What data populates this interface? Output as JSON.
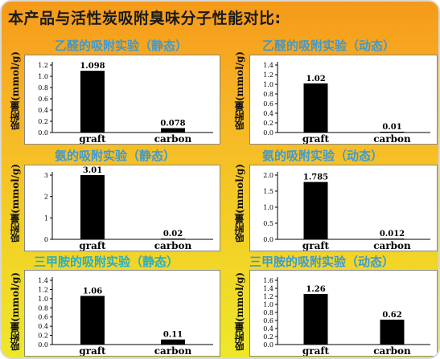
{
  "title": "本产品与活性炭吸附臭味分子性能对比:",
  "colors": {
    "bar": "#000000",
    "title_blue": "#3c9ad4",
    "title_teal": "#27aec8"
  },
  "chart_data": [
    {
      "type": "bar",
      "title": "乙醛的吸附实验（静态）",
      "ylabel": "吸附量(mmol/g)",
      "categories": [
        "graft",
        "carbon"
      ],
      "values": [
        1.098,
        0.078
      ],
      "value_labels": [
        "1.098",
        "0.078"
      ],
      "ylim": [
        0,
        1.2
      ],
      "ticks": [
        "0.0",
        "0.2",
        "0.4",
        "0.6",
        "0.8",
        "1.0",
        "1.2"
      ],
      "grid": false
    },
    {
      "type": "bar",
      "title": "乙醛的吸附实验（动态）",
      "ylabel": "吸附量(mmol/g)",
      "categories": [
        "graft",
        "carbon"
      ],
      "values": [
        1.02,
        0.01
      ],
      "value_labels": [
        "1.02",
        "0.01"
      ],
      "ylim": [
        0,
        1.4
      ],
      "ticks": [
        "0.0",
        "0.2",
        "0.4",
        "0.6",
        "0.8",
        "1.0",
        "1.2",
        "1.4"
      ],
      "grid": false
    },
    {
      "type": "bar",
      "title": "氨的吸附实验（静态）",
      "ylabel": "吸附量(mmol/g)",
      "categories": [
        "graft",
        "carbon"
      ],
      "values": [
        3.01,
        0.02
      ],
      "value_labels": [
        "3.01",
        "0.02"
      ],
      "ylim": [
        0,
        3
      ],
      "ticks": [
        "0",
        "1",
        "2",
        "3"
      ],
      "grid": false
    },
    {
      "type": "bar",
      "title": "氨的吸附实验（动态）",
      "ylabel": "吸附量(mmol/g)",
      "categories": [
        "graft",
        "carbon"
      ],
      "values": [
        1.785,
        0.012
      ],
      "value_labels": [
        "1.785",
        "0.012"
      ],
      "ylim": [
        0,
        2.0
      ],
      "ticks": [
        "0.0",
        "0.5",
        "1.0",
        "1.5",
        "2.0"
      ],
      "grid": false
    },
    {
      "type": "bar",
      "title": "三甲胺的吸附实验（静态）",
      "ylabel": "吸附量(mmol/g)",
      "categories": [
        "graft",
        "carbon"
      ],
      "values": [
        1.06,
        0.11
      ],
      "value_labels": [
        "1.06",
        "0.11"
      ],
      "ylim": [
        0,
        1.4
      ],
      "ticks": [
        "0.0",
        "0.2",
        "0.4",
        "0.6",
        "0.8",
        "1.0",
        "1.2",
        "1.4"
      ],
      "grid": false
    },
    {
      "type": "bar",
      "title": "三甲胺的吸附实验（动态）",
      "ylabel": "吸附量(mmol/g)",
      "categories": [
        "graft",
        "carbon"
      ],
      "values": [
        1.26,
        0.62
      ],
      "value_labels": [
        "1.26",
        "0.62"
      ],
      "ylim": [
        0,
        1.6
      ],
      "ticks": [
        "0.0",
        "0.2",
        "0.4",
        "0.6",
        "0.8",
        "1.0",
        "1.2",
        "1.4",
        "1.6"
      ],
      "grid": false
    }
  ]
}
